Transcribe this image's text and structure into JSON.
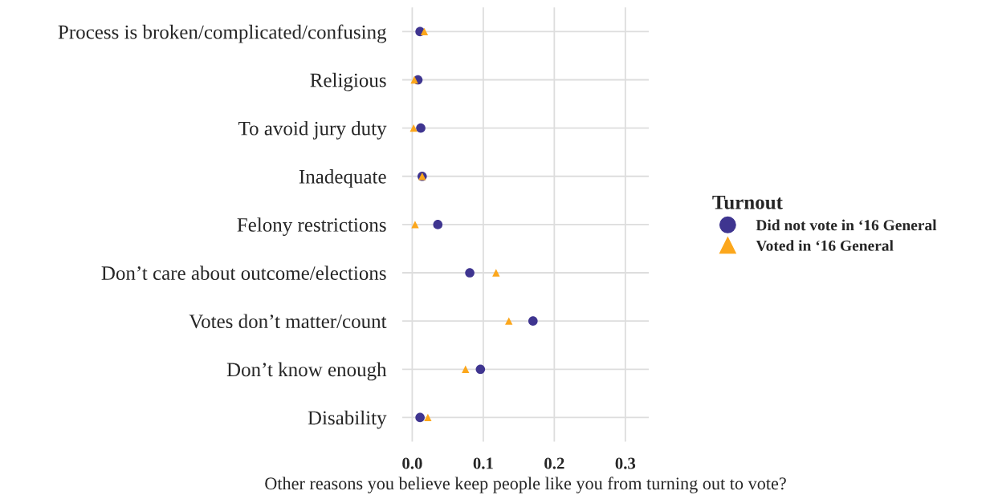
{
  "chart_data": {
    "type": "scatter",
    "categories": [
      "Process is broken/complicated/confusing",
      "Religious",
      "To avoid jury duty",
      "Inadequate",
      "Felony restrictions",
      "Don’t care about outcome/elections",
      "Votes don’t matter/count",
      "Don’t know enough",
      "Disability"
    ],
    "orientation": "horizontal",
    "series": [
      {
        "name": "Did not vote in ‘16 General",
        "color": "#3f3590",
        "marker": "circle",
        "values": [
          0.011,
          0.008,
          0.012,
          0.014,
          0.036,
          0.081,
          0.17,
          0.096,
          0.011
        ]
      },
      {
        "name": "Voted in ‘16 General",
        "color": "#fca71c",
        "marker": "triangle",
        "values": [
          0.017,
          0.003,
          0.002,
          0.014,
          0.004,
          0.118,
          0.136,
          0.075,
          0.022
        ]
      }
    ],
    "xlabel": "Other reasons you believe keep people like you from turning out to vote?",
    "legend_title": "Turnout",
    "legend": "right",
    "xlim": [
      -0.014,
      0.333
    ],
    "xticks": [
      {
        "value": 0,
        "label": "0.0"
      },
      0.1,
      0.2,
      0.3
    ],
    "grid": true
  }
}
